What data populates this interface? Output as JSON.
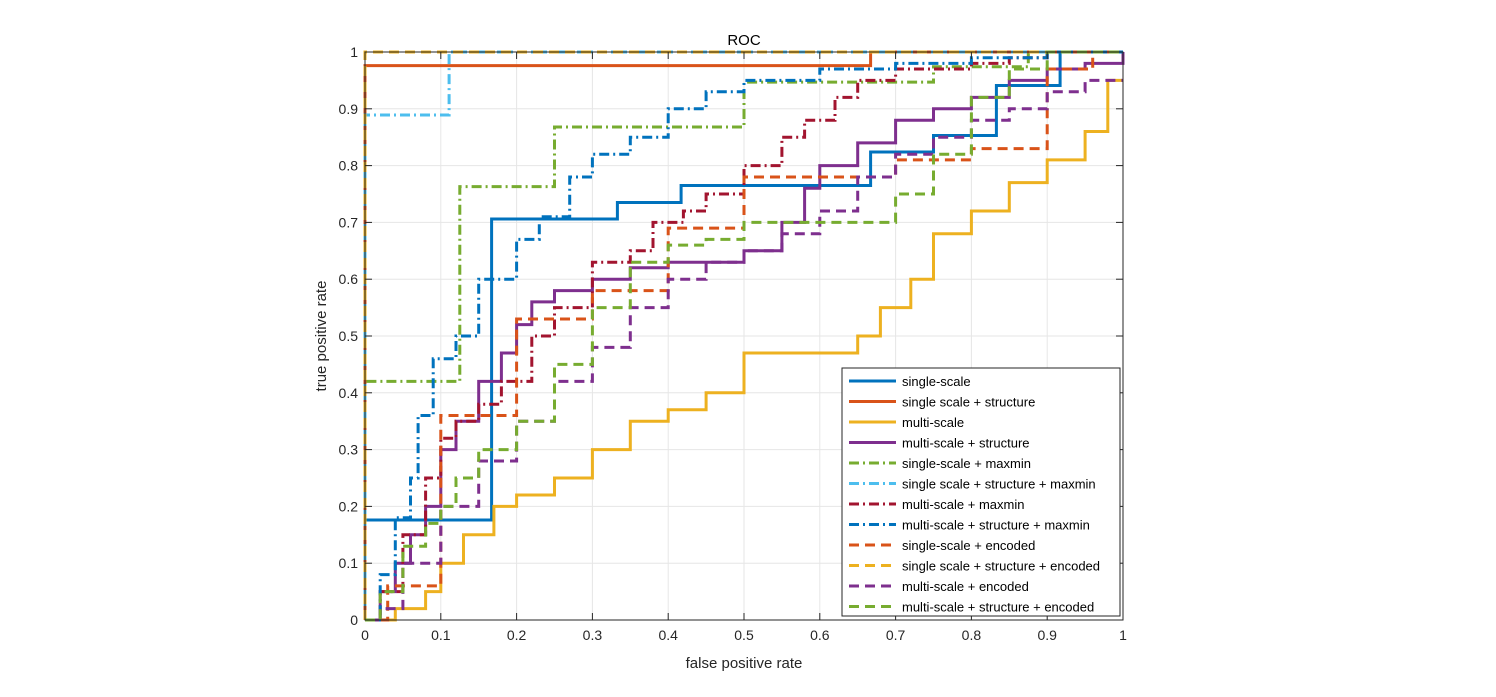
{
  "chart_data": {
    "type": "line",
    "title": "ROC",
    "xlabel": "false positive rate",
    "ylabel": "true positive rate",
    "xlim": [
      0,
      1
    ],
    "ylim": [
      0,
      1
    ],
    "x_ticks": [
      "0",
      "0.1",
      "0.2",
      "0.3",
      "0.4",
      "0.5",
      "0.6",
      "0.7",
      "0.8",
      "0.9",
      "1"
    ],
    "y_ticks": [
      "0",
      "0.1",
      "0.2",
      "0.3",
      "0.4",
      "0.5",
      "0.6",
      "0.7",
      "0.8",
      "0.9",
      "1"
    ],
    "grid": true,
    "legend_location": "bottom-right",
    "series": [
      {
        "name": "single-scale",
        "color": "#0072BD",
        "style": "solid",
        "x": [
          0,
          0,
          0.167,
          0.167,
          0.333,
          0.333,
          0.417,
          0.417,
          0.5,
          0.5,
          0.667,
          0.667,
          0.75,
          0.75,
          0.833,
          0.833,
          0.917,
          0.917,
          1
        ],
        "y": [
          0,
          0.176,
          0.176,
          0.706,
          0.706,
          0.735,
          0.735,
          0.765,
          0.765,
          0.765,
          0.765,
          0.824,
          0.824,
          0.853,
          0.853,
          0.941,
          0.941,
          1,
          1
        ]
      },
      {
        "name": "single scale + structure",
        "color": "#D95319",
        "style": "solid",
        "x": [
          0,
          0,
          0.667,
          0.667,
          1
        ],
        "y": [
          0,
          0.976,
          0.976,
          1,
          1
        ]
      },
      {
        "name": "multi-scale",
        "color": "#EDB120",
        "style": "solid",
        "x": [
          0,
          0.04,
          0.04,
          0.08,
          0.08,
          0.1,
          0.1,
          0.13,
          0.13,
          0.17,
          0.17,
          0.2,
          0.2,
          0.25,
          0.25,
          0.3,
          0.3,
          0.35,
          0.35,
          0.4,
          0.4,
          0.45,
          0.45,
          0.5,
          0.5,
          0.53,
          0.53,
          0.65,
          0.65,
          0.68,
          0.68,
          0.72,
          0.72,
          0.75,
          0.75,
          0.8,
          0.8,
          0.85,
          0.85,
          0.9,
          0.9,
          0.95,
          0.95,
          0.98,
          0.98,
          1
        ],
        "y": [
          0,
          0,
          0.02,
          0.02,
          0.05,
          0.05,
          0.1,
          0.1,
          0.15,
          0.15,
          0.2,
          0.2,
          0.22,
          0.22,
          0.25,
          0.25,
          0.3,
          0.3,
          0.35,
          0.35,
          0.37,
          0.37,
          0.4,
          0.4,
          0.47,
          0.47,
          0.47,
          0.47,
          0.5,
          0.5,
          0.55,
          0.55,
          0.6,
          0.6,
          0.68,
          0.68,
          0.72,
          0.72,
          0.77,
          0.77,
          0.81,
          0.81,
          0.86,
          0.86,
          0.95,
          0.95
        ]
      },
      {
        "name": "multi-scale + structure",
        "color": "#7E2F8E",
        "style": "solid",
        "x": [
          0,
          0.02,
          0.02,
          0.04,
          0.04,
          0.06,
          0.06,
          0.08,
          0.08,
          0.1,
          0.1,
          0.12,
          0.12,
          0.15,
          0.15,
          0.18,
          0.18,
          0.2,
          0.2,
          0.22,
          0.22,
          0.25,
          0.25,
          0.3,
          0.3,
          0.35,
          0.35,
          0.4,
          0.4,
          0.5,
          0.5,
          0.55,
          0.55,
          0.58,
          0.58,
          0.6,
          0.6,
          0.65,
          0.65,
          0.7,
          0.7,
          0.75,
          0.75,
          0.8,
          0.8,
          0.85,
          0.85,
          0.9,
          0.9,
          0.95,
          0.95,
          1,
          1
        ],
        "y": [
          0,
          0,
          0.05,
          0.05,
          0.1,
          0.1,
          0.15,
          0.15,
          0.2,
          0.2,
          0.3,
          0.3,
          0.35,
          0.35,
          0.42,
          0.42,
          0.47,
          0.47,
          0.52,
          0.52,
          0.56,
          0.56,
          0.58,
          0.58,
          0.6,
          0.6,
          0.62,
          0.62,
          0.63,
          0.63,
          0.65,
          0.65,
          0.7,
          0.7,
          0.76,
          0.76,
          0.8,
          0.8,
          0.84,
          0.84,
          0.88,
          0.88,
          0.9,
          0.9,
          0.92,
          0.92,
          0.95,
          0.95,
          0.97,
          0.97,
          0.98,
          0.98,
          1
        ]
      },
      {
        "name": "single-scale + maxmin",
        "color": "#77AC30",
        "style": "dashdot",
        "x": [
          0,
          0,
          0.125,
          0.125,
          0.25,
          0.25,
          0.5,
          0.5,
          0.75,
          0.75,
          0.875,
          0.875,
          1
        ],
        "y": [
          0,
          0.42,
          0.42,
          0.763,
          0.763,
          0.868,
          0.868,
          0.947,
          0.947,
          0.974,
          0.974,
          1,
          1
        ]
      },
      {
        "name": "single scale + structure + maxmin",
        "color": "#4DBEEE",
        "style": "dashdot",
        "x": [
          0,
          0,
          0.111,
          0.111,
          1
        ],
        "y": [
          0,
          0.889,
          0.889,
          1,
          1
        ]
      },
      {
        "name": "multi-scale + maxmin",
        "color": "#A2142F",
        "style": "dashdot",
        "x": [
          0,
          0.02,
          0.02,
          0.05,
          0.05,
          0.08,
          0.08,
          0.1,
          0.1,
          0.12,
          0.12,
          0.15,
          0.15,
          0.18,
          0.18,
          0.22,
          0.22,
          0.25,
          0.25,
          0.3,
          0.3,
          0.35,
          0.35,
          0.38,
          0.38,
          0.42,
          0.42,
          0.45,
          0.45,
          0.5,
          0.5,
          0.55,
          0.55,
          0.58,
          0.58,
          0.62,
          0.62,
          0.65,
          0.65,
          0.7,
          0.7,
          0.8,
          0.8,
          0.85,
          0.85,
          0.9,
          0.9,
          0.95,
          0.95,
          1
        ],
        "y": [
          0,
          0,
          0.05,
          0.05,
          0.15,
          0.15,
          0.25,
          0.25,
          0.32,
          0.32,
          0.35,
          0.35,
          0.38,
          0.38,
          0.42,
          0.42,
          0.5,
          0.5,
          0.55,
          0.55,
          0.63,
          0.63,
          0.65,
          0.65,
          0.7,
          0.7,
          0.72,
          0.72,
          0.75,
          0.75,
          0.8,
          0.8,
          0.85,
          0.85,
          0.88,
          0.88,
          0.92,
          0.92,
          0.95,
          0.95,
          0.97,
          0.97,
          0.98,
          0.98,
          0.99,
          0.99,
          1,
          1,
          1,
          1
        ]
      },
      {
        "name": "multi-scale + structure + maxmin",
        "color": "#0072BD",
        "style": "dashdot",
        "x": [
          0,
          0.02,
          0.02,
          0.04,
          0.04,
          0.06,
          0.06,
          0.07,
          0.07,
          0.09,
          0.09,
          0.12,
          0.12,
          0.15,
          0.15,
          0.2,
          0.2,
          0.23,
          0.23,
          0.27,
          0.27,
          0.3,
          0.3,
          0.35,
          0.35,
          0.4,
          0.4,
          0.45,
          0.45,
          0.5,
          0.5,
          0.6,
          0.6,
          0.7,
          0.7,
          0.8,
          0.8,
          0.9,
          0.9,
          1
        ],
        "y": [
          0,
          0,
          0.08,
          0.08,
          0.18,
          0.18,
          0.25,
          0.25,
          0.36,
          0.36,
          0.46,
          0.46,
          0.5,
          0.5,
          0.6,
          0.6,
          0.67,
          0.67,
          0.71,
          0.71,
          0.78,
          0.78,
          0.82,
          0.82,
          0.85,
          0.85,
          0.9,
          0.9,
          0.93,
          0.93,
          0.95,
          0.95,
          0.97,
          0.97,
          0.98,
          0.98,
          0.99,
          0.99,
          1,
          1
        ]
      },
      {
        "name": "single-scale + encoded",
        "color": "#D95319",
        "style": "dashed",
        "x": [
          0,
          0.03,
          0.03,
          0.1,
          0.1,
          0.2,
          0.2,
          0.3,
          0.3,
          0.4,
          0.4,
          0.5,
          0.5,
          0.6,
          0.6,
          0.7,
          0.7,
          0.8,
          0.8,
          0.9,
          0.9,
          0.96,
          0.96,
          1
        ],
        "y": [
          0,
          0,
          0.06,
          0.06,
          0.36,
          0.36,
          0.53,
          0.53,
          0.58,
          0.58,
          0.69,
          0.69,
          0.78,
          0.78,
          0.78,
          0.78,
          0.81,
          0.81,
          0.83,
          0.83,
          0.97,
          0.97,
          1,
          1
        ]
      },
      {
        "name": "single scale + structure + encoded",
        "color": "#EDB120",
        "style": "dashed",
        "x": [
          0,
          0,
          1
        ],
        "y": [
          0,
          1,
          1
        ]
      },
      {
        "name": "multi-scale + encoded",
        "color": "#7E2F8E",
        "style": "dashed",
        "x": [
          0,
          0.02,
          0.02,
          0.05,
          0.05,
          0.1,
          0.1,
          0.15,
          0.15,
          0.2,
          0.2,
          0.25,
          0.25,
          0.3,
          0.3,
          0.35,
          0.35,
          0.4,
          0.4,
          0.45,
          0.45,
          0.5,
          0.5,
          0.55,
          0.55,
          0.6,
          0.6,
          0.65,
          0.65,
          0.7,
          0.7,
          0.75,
          0.75,
          0.8,
          0.8,
          0.85,
          0.85,
          0.9,
          0.9,
          0.95,
          0.95,
          1
        ],
        "y": [
          0,
          0,
          0.02,
          0.02,
          0.1,
          0.1,
          0.2,
          0.2,
          0.28,
          0.28,
          0.35,
          0.35,
          0.42,
          0.42,
          0.48,
          0.48,
          0.55,
          0.55,
          0.6,
          0.6,
          0.63,
          0.63,
          0.65,
          0.65,
          0.68,
          0.68,
          0.72,
          0.72,
          0.78,
          0.78,
          0.82,
          0.82,
          0.85,
          0.85,
          0.88,
          0.88,
          0.9,
          0.9,
          0.93,
          0.93,
          0.95,
          0.95
        ]
      },
      {
        "name": "multi-scale + structure + encoded",
        "color": "#77AC30",
        "style": "dashed",
        "x": [
          0,
          0.02,
          0.02,
          0.05,
          0.05,
          0.08,
          0.08,
          0.1,
          0.1,
          0.12,
          0.12,
          0.15,
          0.15,
          0.2,
          0.2,
          0.25,
          0.25,
          0.3,
          0.3,
          0.35,
          0.35,
          0.4,
          0.4,
          0.45,
          0.45,
          0.5,
          0.5,
          0.55,
          0.55,
          0.6,
          0.6,
          0.7,
          0.7,
          0.75,
          0.75,
          0.8,
          0.8,
          0.85,
          0.85,
          0.9,
          0.9,
          1
        ],
        "y": [
          0,
          0,
          0.05,
          0.05,
          0.13,
          0.13,
          0.17,
          0.17,
          0.2,
          0.2,
          0.25,
          0.25,
          0.3,
          0.3,
          0.35,
          0.35,
          0.45,
          0.45,
          0.55,
          0.55,
          0.63,
          0.63,
          0.66,
          0.66,
          0.67,
          0.67,
          0.7,
          0.7,
          0.7,
          0.7,
          0.7,
          0.7,
          0.75,
          0.75,
          0.82,
          0.82,
          0.92,
          0.92,
          0.97,
          0.97,
          1,
          1
        ]
      }
    ]
  }
}
